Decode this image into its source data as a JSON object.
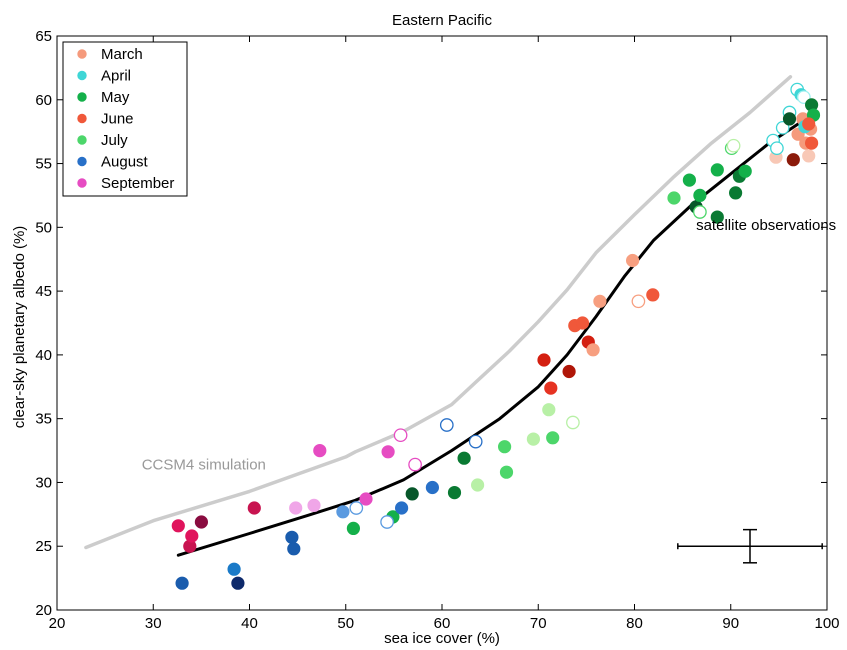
{
  "chart_data": {
    "type": "scatter",
    "title": "Eastern Pacific",
    "xlabel": "sea ice cover (%)",
    "ylabel": "clear-sky planetary albedo (%)",
    "xlim": [
      20,
      100
    ],
    "ylim": [
      20,
      65
    ],
    "xticks": [
      20,
      30,
      40,
      50,
      60,
      70,
      80,
      90,
      100
    ],
    "yticks": [
      20,
      25,
      30,
      35,
      40,
      45,
      50,
      55,
      60,
      65
    ],
    "grid": false,
    "legend_position": "top-left",
    "series": [
      {
        "name": "March",
        "color": "#f59a7c",
        "points": [
          {
            "x": 94.7,
            "y": 55.5,
            "c": "#f8c8b6",
            "f": true
          },
          {
            "x": 96.5,
            "y": 55.3,
            "c": "#8b1a0a",
            "f": true
          },
          {
            "x": 97.0,
            "y": 57.3,
            "c": "#f59a7c",
            "f": true
          },
          {
            "x": 97.5,
            "y": 58.5,
            "c": "#f59a7c",
            "f": true
          },
          {
            "x": 97.8,
            "y": 56.6,
            "c": "#f59a7c",
            "f": true
          },
          {
            "x": 98.1,
            "y": 55.6,
            "c": "#f8c8b6",
            "f": true
          },
          {
            "x": 98.3,
            "y": 57.7,
            "c": "#f59a7c",
            "f": true
          }
        ]
      },
      {
        "name": "April",
        "color": "#3fd6d6",
        "points": [
          {
            "x": 94.4,
            "y": 56.8,
            "c": "#3fd6d6",
            "f": false
          },
          {
            "x": 94.8,
            "y": 56.2,
            "c": "#3fd6d6",
            "f": false
          },
          {
            "x": 95.4,
            "y": 57.8,
            "c": "#3fd6d6",
            "f": false
          },
          {
            "x": 96.1,
            "y": 59.0,
            "c": "#3fd6d6",
            "f": false
          },
          {
            "x": 96.9,
            "y": 60.8,
            "c": "#3fd6d6",
            "f": false
          },
          {
            "x": 97.3,
            "y": 60.4,
            "c": "#3fd6d6",
            "f": true
          },
          {
            "x": 97.6,
            "y": 60.2,
            "c": "#9ff0f0",
            "f": false
          },
          {
            "x": 97.7,
            "y": 57.9,
            "c": "#3fd6d6",
            "f": true
          }
        ]
      },
      {
        "name": "May",
        "color": "#14b04a",
        "points": [
          {
            "x": 85.7,
            "y": 53.7,
            "c": "#14b04a",
            "f": true
          },
          {
            "x": 86.4,
            "y": 51.6,
            "c": "#07572a",
            "f": true
          },
          {
            "x": 86.8,
            "y": 52.5,
            "c": "#14b04a",
            "f": true
          },
          {
            "x": 88.6,
            "y": 54.5,
            "c": "#14b04a",
            "f": true
          },
          {
            "x": 88.6,
            "y": 50.8,
            "c": "#0a7a33",
            "f": true
          },
          {
            "x": 90.5,
            "y": 52.7,
            "c": "#0a7a33",
            "f": true
          },
          {
            "x": 90.9,
            "y": 54.0,
            "c": "#0a7a33",
            "f": true
          },
          {
            "x": 91.5,
            "y": 54.4,
            "c": "#14b04a",
            "f": true
          },
          {
            "x": 96.1,
            "y": 58.5,
            "c": "#07572a",
            "f": true
          },
          {
            "x": 98.4,
            "y": 59.6,
            "c": "#0a7a33",
            "f": true
          },
          {
            "x": 98.6,
            "y": 58.8,
            "c": "#14b04a",
            "f": true
          }
        ]
      },
      {
        "name": "June",
        "color": "#f0583a",
        "points": [
          {
            "x": 70.6,
            "y": 39.6,
            "c": "#d41f10",
            "f": true
          },
          {
            "x": 71.3,
            "y": 37.4,
            "c": "#e63322",
            "f": true
          },
          {
            "x": 73.2,
            "y": 38.7,
            "c": "#b01608",
            "f": true
          },
          {
            "x": 73.8,
            "y": 42.3,
            "c": "#f0583a",
            "f": true
          },
          {
            "x": 74.6,
            "y": 42.5,
            "c": "#f0583a",
            "f": true
          },
          {
            "x": 75.2,
            "y": 41.0,
            "c": "#d41f10",
            "f": true
          },
          {
            "x": 75.7,
            "y": 40.4,
            "c": "#f79f80",
            "f": true
          },
          {
            "x": 76.4,
            "y": 44.2,
            "c": "#f79f80",
            "f": true
          },
          {
            "x": 79.8,
            "y": 47.4,
            "c": "#f79f80",
            "f": true
          },
          {
            "x": 80.4,
            "y": 44.2,
            "c": "#f79f80",
            "f": false
          },
          {
            "x": 81.9,
            "y": 44.7,
            "c": "#f0583a",
            "f": true
          },
          {
            "x": 98.1,
            "y": 58.1,
            "c": "#f0583a",
            "f": true
          },
          {
            "x": 98.4,
            "y": 56.6,
            "c": "#f0583a",
            "f": true
          }
        ]
      },
      {
        "name": "July",
        "color": "#4cd66a",
        "points": [
          {
            "x": 54.9,
            "y": 27.3,
            "c": "#14b04a",
            "f": true
          },
          {
            "x": 50.8,
            "y": 26.4,
            "c": "#14b04a",
            "f": true
          },
          {
            "x": 56.9,
            "y": 29.1,
            "c": "#07572a",
            "f": true
          },
          {
            "x": 61.3,
            "y": 29.2,
            "c": "#0a7a33",
            "f": true
          },
          {
            "x": 62.3,
            "y": 31.9,
            "c": "#0a7a33",
            "f": true
          },
          {
            "x": 63.7,
            "y": 29.8,
            "c": "#b8f0a6",
            "f": true
          },
          {
            "x": 66.5,
            "y": 32.8,
            "c": "#4cd66a",
            "f": true
          },
          {
            "x": 66.7,
            "y": 30.8,
            "c": "#4cd66a",
            "f": true
          },
          {
            "x": 69.5,
            "y": 33.4,
            "c": "#b8f0a6",
            "f": true
          },
          {
            "x": 71.1,
            "y": 35.7,
            "c": "#b8f0a6",
            "f": true
          },
          {
            "x": 71.5,
            "y": 33.5,
            "c": "#4cd66a",
            "f": true
          },
          {
            "x": 73.6,
            "y": 34.7,
            "c": "#b8f0a6",
            "f": false
          },
          {
            "x": 84.1,
            "y": 52.3,
            "c": "#4cd66a",
            "f": true
          },
          {
            "x": 86.8,
            "y": 51.2,
            "c": "#4cd66a",
            "f": false
          },
          {
            "x": 90.1,
            "y": 56.2,
            "c": "#4cd66a",
            "f": false
          },
          {
            "x": 90.3,
            "y": 56.4,
            "c": "#b8f0a6",
            "f": false
          }
        ]
      },
      {
        "name": "August",
        "color": "#2870c8",
        "points": [
          {
            "x": 33.0,
            "y": 22.1,
            "c": "#1a5cad",
            "f": true
          },
          {
            "x": 38.4,
            "y": 23.2,
            "c": "#1a7ac8",
            "f": true
          },
          {
            "x": 38.8,
            "y": 22.1,
            "c": "#0e2a6b",
            "f": true
          },
          {
            "x": 44.4,
            "y": 25.7,
            "c": "#1a5cad",
            "f": true
          },
          {
            "x": 44.6,
            "y": 24.8,
            "c": "#1a5cad",
            "f": true
          },
          {
            "x": 49.7,
            "y": 27.7,
            "c": "#5a9ae0",
            "f": true
          },
          {
            "x": 51.1,
            "y": 28.0,
            "c": "#5a9ae0",
            "f": false
          },
          {
            "x": 54.3,
            "y": 26.9,
            "c": "#5a9ae0",
            "f": false
          },
          {
            "x": 55.8,
            "y": 28.0,
            "c": "#2870c8",
            "f": true
          },
          {
            "x": 59.0,
            "y": 29.6,
            "c": "#2870c8",
            "f": true
          },
          {
            "x": 60.5,
            "y": 34.5,
            "c": "#2870c8",
            "f": false
          },
          {
            "x": 63.5,
            "y": 33.2,
            "c": "#2870c8",
            "f": false
          }
        ]
      },
      {
        "name": "September",
        "color": "#e64cc2",
        "points": [
          {
            "x": 32.6,
            "y": 26.6,
            "c": "#e0145c",
            "f": true
          },
          {
            "x": 33.8,
            "y": 25.0,
            "c": "#c81450",
            "f": true
          },
          {
            "x": 34.0,
            "y": 25.8,
            "c": "#e0145c",
            "f": true
          },
          {
            "x": 35.0,
            "y": 26.9,
            "c": "#8a0c40",
            "f": true
          },
          {
            "x": 40.5,
            "y": 28.0,
            "c": "#c81450",
            "f": true
          },
          {
            "x": 44.8,
            "y": 28.0,
            "c": "#f0a6e8",
            "f": true
          },
          {
            "x": 46.7,
            "y": 28.2,
            "c": "#f0a6e8",
            "f": true
          },
          {
            "x": 47.3,
            "y": 32.5,
            "c": "#e64cc2",
            "f": true
          },
          {
            "x": 52.1,
            "y": 28.7,
            "c": "#e64cc2",
            "f": true
          },
          {
            "x": 54.4,
            "y": 32.4,
            "c": "#e64cc2",
            "f": true
          },
          {
            "x": 55.7,
            "y": 33.7,
            "c": "#e64cc2",
            "f": false
          },
          {
            "x": 57.2,
            "y": 31.4,
            "c": "#e64cc2",
            "f": false
          }
        ]
      }
    ],
    "lines": [
      {
        "name": "satellite observations",
        "color": "#000000",
        "points": [
          [
            32.6,
            24.3
          ],
          [
            40,
            26.0
          ],
          [
            46,
            27.4
          ],
          [
            51,
            28.6
          ],
          [
            56,
            30.2
          ],
          [
            61,
            32.5
          ],
          [
            66,
            35.0
          ],
          [
            70,
            37.5
          ],
          [
            73,
            40.0
          ],
          [
            76,
            43.0
          ],
          [
            79,
            46.2
          ],
          [
            82,
            49.0
          ],
          [
            86,
            51.8
          ],
          [
            90,
            54.2
          ],
          [
            94,
            56.6
          ],
          [
            98.6,
            58.9
          ]
        ]
      },
      {
        "name": "CCSM4 simulation",
        "color": "#cccccc",
        "points": [
          [
            23,
            24.9
          ],
          [
            30,
            27.0
          ],
          [
            40,
            29.3
          ],
          [
            50,
            32.0
          ],
          [
            51,
            32.4
          ],
          [
            56,
            34.0
          ],
          [
            61,
            36.1
          ],
          [
            64,
            38.2
          ],
          [
            67,
            40.3
          ],
          [
            70,
            42.6
          ],
          [
            73,
            45.1
          ],
          [
            76,
            48.0
          ],
          [
            80,
            51.0
          ],
          [
            84,
            53.9
          ],
          [
            88,
            56.6
          ],
          [
            92,
            59.0
          ],
          [
            96.2,
            61.8
          ]
        ]
      }
    ],
    "annotations": [
      {
        "text": "satellite observations",
        "x": 86.4,
        "y": 49.8
      },
      {
        "text": "CCSM4 simulation",
        "x": 28.8,
        "y": 31.0
      }
    ],
    "error_bar": {
      "x": 92.0,
      "y": 25.0,
      "x_low": 84.5,
      "x_high": 99.5,
      "y_low": 23.7,
      "y_high": 26.3
    }
  }
}
